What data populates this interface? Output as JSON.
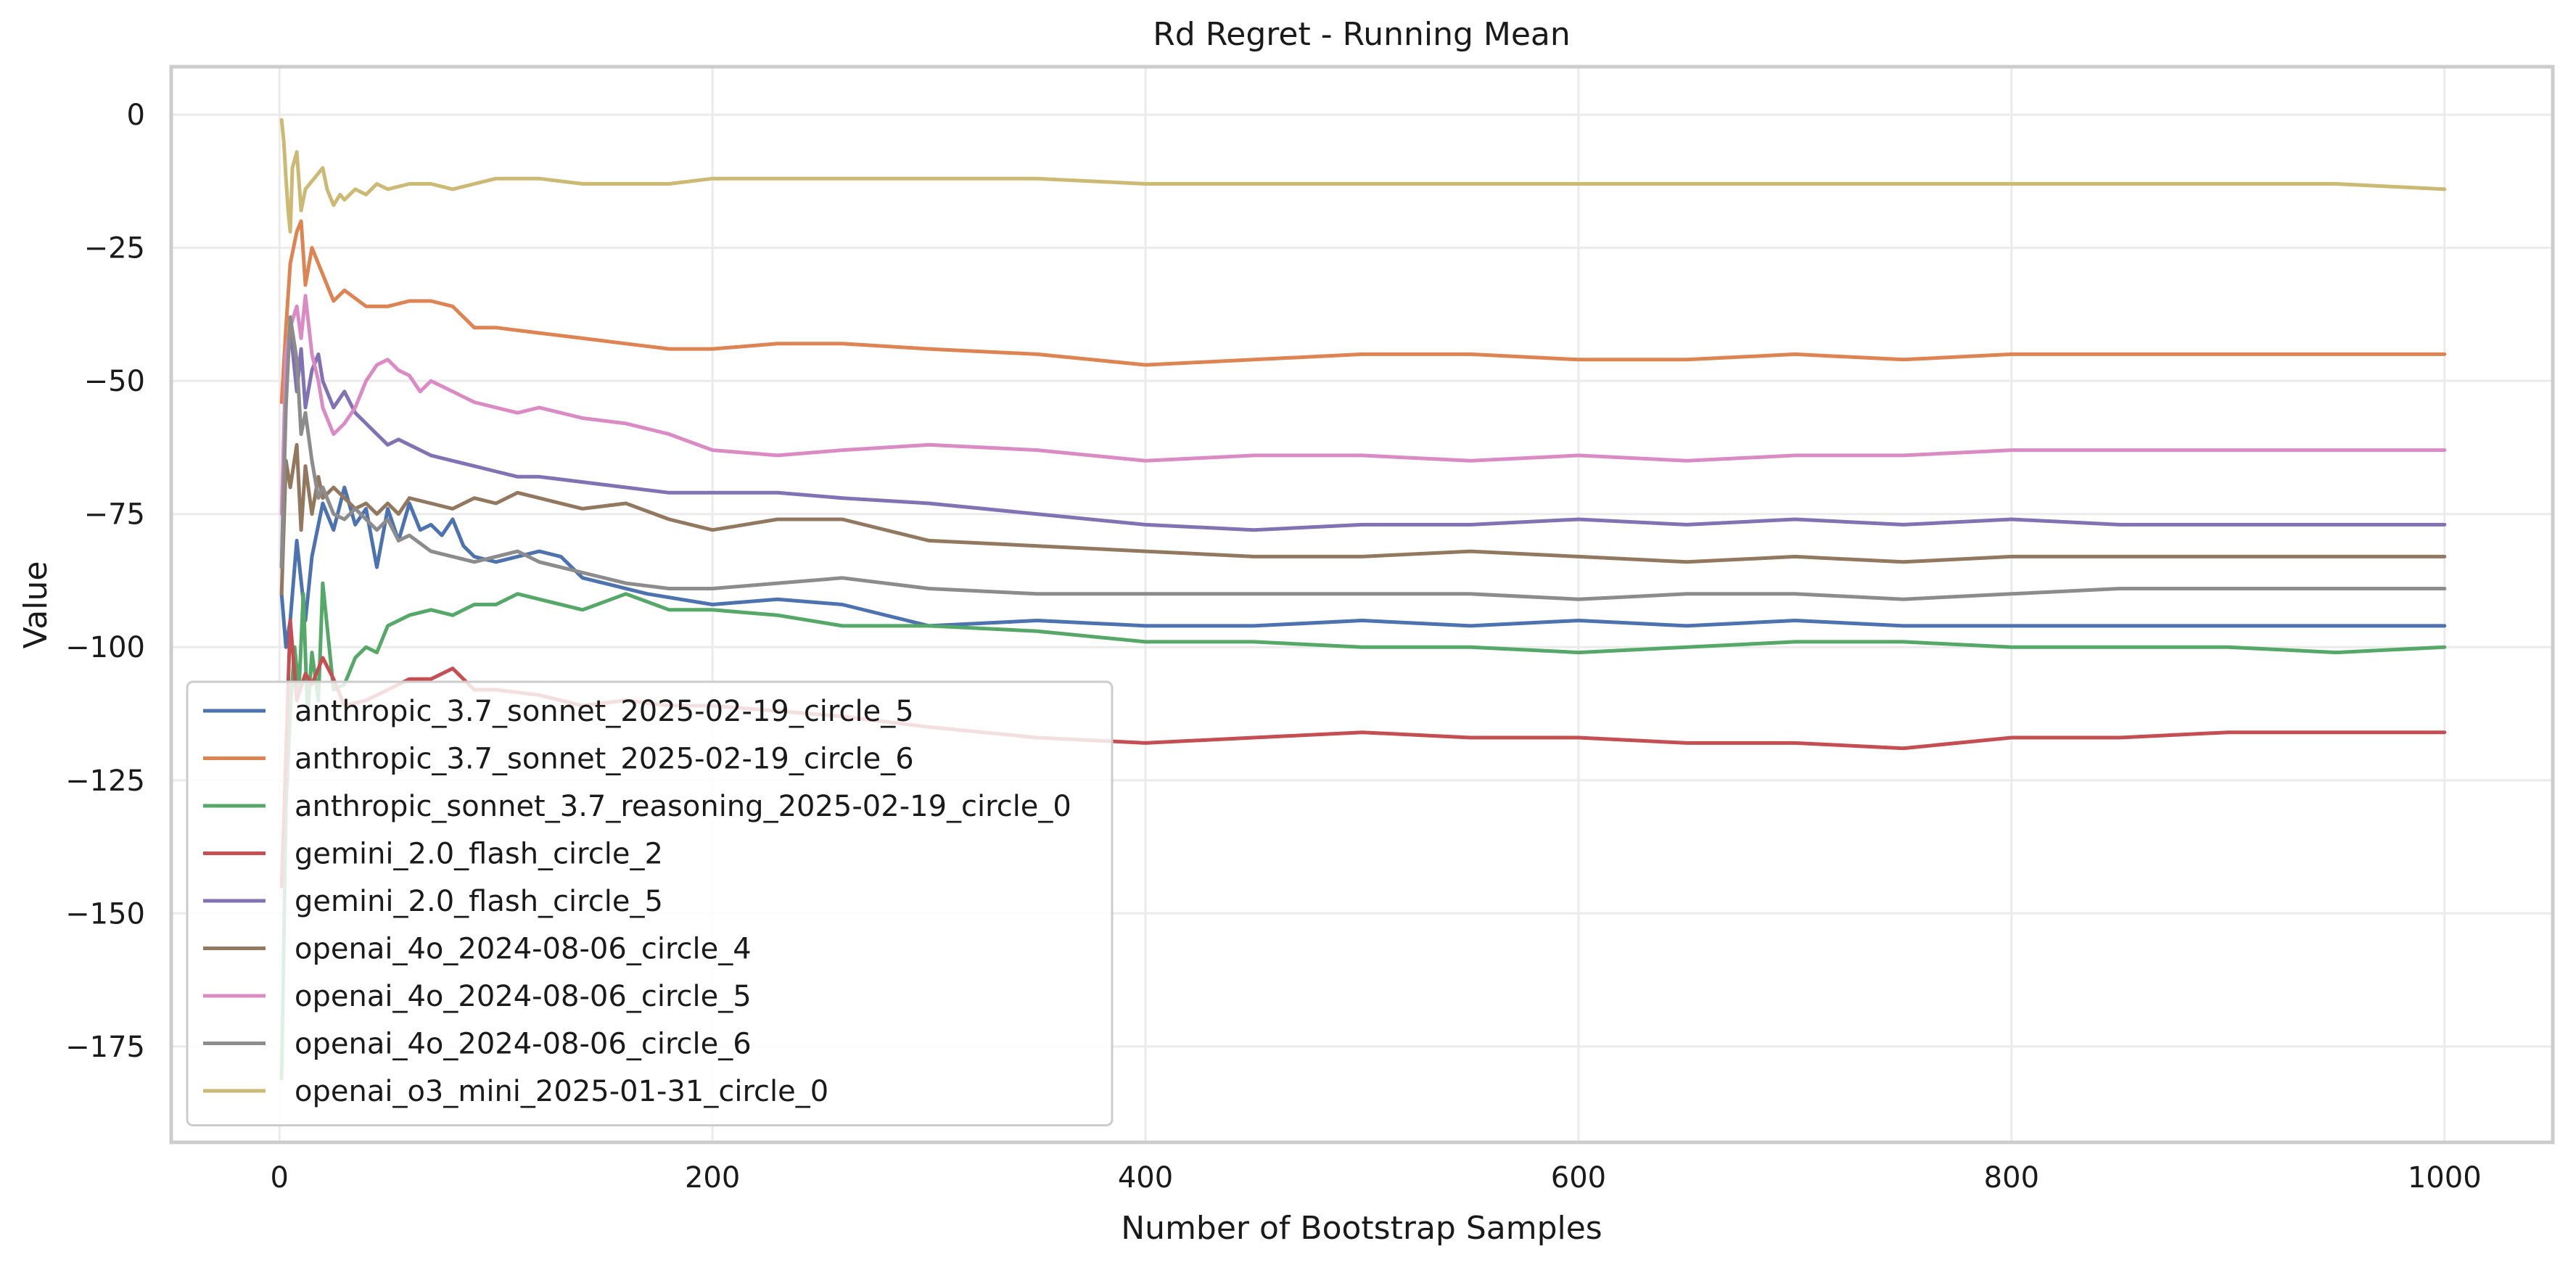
{
  "chart_data": {
    "type": "line",
    "title": "Rd Regret - Running Mean",
    "xlabel": "Number of Bootstrap Samples",
    "ylabel": "Value",
    "xlim": [
      -50,
      1050
    ],
    "ylim": [
      -193,
      9
    ],
    "xticks": [
      0,
      200,
      400,
      600,
      800,
      1000
    ],
    "xtick_labels": [
      "0",
      "200",
      "400",
      "600",
      "800",
      "1000"
    ],
    "yticks": [
      0,
      -25,
      -50,
      -75,
      -100,
      -125,
      -150,
      -175
    ],
    "ytick_labels": [
      "0",
      "−25",
      "−50",
      "−75",
      "−100",
      "−125",
      "−150",
      "−175"
    ],
    "grid": true,
    "legend_position": "lower-left",
    "series": [
      {
        "name": "anthropic_3.7_sonnet_2025-02-19_circle_5",
        "color": "#4c72b0",
        "x": [
          1,
          3,
          5,
          8,
          12,
          15,
          20,
          25,
          30,
          35,
          40,
          45,
          50,
          55,
          60,
          65,
          70,
          75,
          80,
          85,
          90,
          100,
          110,
          120,
          130,
          140,
          150,
          170,
          200,
          230,
          260,
          300,
          350,
          400,
          450,
          500,
          550,
          600,
          650,
          700,
          750,
          800,
          850,
          900,
          950,
          1000
        ],
        "y": [
          -90,
          -100,
          -95,
          -80,
          -95,
          -83,
          -73,
          -78,
          -70,
          -77,
          -74,
          -85,
          -74,
          -80,
          -73,
          -78,
          -77,
          -79,
          -76,
          -81,
          -83,
          -84,
          -83,
          -82,
          -83,
          -87,
          -88,
          -90,
          -92,
          -91,
          -92,
          -96,
          -95,
          -96,
          -96,
          -95,
          -96,
          -95,
          -96,
          -95,
          -96,
          -96,
          -96,
          -96,
          -96,
          -96
        ]
      },
      {
        "name": "anthropic_3.7_sonnet_2025-02-19_circle_6",
        "color": "#dd8452",
        "x": [
          1,
          3,
          5,
          8,
          10,
          12,
          15,
          20,
          25,
          30,
          40,
          50,
          60,
          70,
          80,
          90,
          100,
          120,
          140,
          160,
          180,
          200,
          230,
          260,
          300,
          350,
          400,
          450,
          500,
          550,
          600,
          650,
          700,
          750,
          800,
          850,
          900,
          950,
          1000
        ],
        "y": [
          -54,
          -40,
          -28,
          -22,
          -20,
          -32,
          -25,
          -30,
          -35,
          -33,
          -36,
          -36,
          -35,
          -35,
          -36,
          -40,
          -40,
          -41,
          -42,
          -43,
          -44,
          -44,
          -43,
          -43,
          -44,
          -45,
          -47,
          -46,
          -45,
          -45,
          -46,
          -46,
          -45,
          -46,
          -45,
          -45,
          -45,
          -45,
          -45
        ]
      },
      {
        "name": "anthropic_sonnet_3.7_reasoning_2025-02-19_circle_0",
        "color": "#55a868",
        "x": [
          1,
          3,
          5,
          7,
          9,
          11,
          13,
          15,
          18,
          20,
          25,
          30,
          35,
          40,
          45,
          50,
          60,
          70,
          80,
          90,
          100,
          110,
          120,
          140,
          160,
          180,
          200,
          230,
          260,
          300,
          350,
          400,
          450,
          500,
          550,
          600,
          650,
          700,
          750,
          800,
          850,
          900,
          950,
          1000
        ],
        "y": [
          -181,
          -130,
          -112,
          -100,
          -108,
          -90,
          -113,
          -101,
          -110,
          -88,
          -108,
          -107,
          -102,
          -100,
          -101,
          -96,
          -94,
          -93,
          -94,
          -92,
          -92,
          -90,
          -91,
          -93,
          -90,
          -93,
          -93,
          -94,
          -96,
          -96,
          -97,
          -99,
          -99,
          -100,
          -100,
          -101,
          -100,
          -99,
          -99,
          -100,
          -100,
          -100,
          -101,
          -100
        ]
      },
      {
        "name": "gemini_2.0_flash_circle_2",
        "color": "#c44e52",
        "x": [
          1,
          3,
          5,
          8,
          12,
          15,
          20,
          25,
          30,
          40,
          50,
          60,
          70,
          80,
          90,
          100,
          120,
          140,
          160,
          180,
          200,
          230,
          260,
          300,
          350,
          400,
          450,
          500,
          550,
          600,
          650,
          700,
          750,
          800,
          850,
          900,
          950,
          1000
        ],
        "y": [
          -145,
          -120,
          -95,
          -110,
          -105,
          -107,
          -102,
          -106,
          -111,
          -110,
          -108,
          -106,
          -106,
          -104,
          -108,
          -108,
          -109,
          -111,
          -110,
          -111,
          -111,
          -112,
          -113,
          -115,
          -117,
          -118,
          -117,
          -116,
          -117,
          -117,
          -118,
          -118,
          -119,
          -117,
          -117,
          -116,
          -116,
          -116
        ]
      },
      {
        "name": "gemini_2.0_flash_circle_5",
        "color": "#8172b3",
        "x": [
          1,
          3,
          5,
          8,
          10,
          12,
          15,
          18,
          20,
          25,
          30,
          35,
          40,
          45,
          50,
          55,
          60,
          70,
          80,
          90,
          100,
          110,
          120,
          140,
          160,
          180,
          200,
          230,
          260,
          300,
          350,
          400,
          450,
          500,
          550,
          600,
          650,
          700,
          750,
          800,
          850,
          900,
          950,
          1000
        ],
        "y": [
          -85,
          -50,
          -40,
          -52,
          -44,
          -55,
          -48,
          -45,
          -50,
          -55,
          -52,
          -56,
          -58,
          -60,
          -62,
          -61,
          -62,
          -64,
          -65,
          -66,
          -67,
          -68,
          -68,
          -69,
          -70,
          -71,
          -71,
          -71,
          -72,
          -73,
          -75,
          -77,
          -78,
          -77,
          -77,
          -76,
          -77,
          -76,
          -77,
          -76,
          -77,
          -77,
          -77,
          -77
        ]
      },
      {
        "name": "openai_4o_2024-08-06_circle_4",
        "color": "#937860",
        "x": [
          1,
          3,
          5,
          8,
          10,
          12,
          15,
          18,
          20,
          25,
          30,
          35,
          40,
          45,
          50,
          55,
          60,
          70,
          80,
          90,
          100,
          110,
          120,
          140,
          160,
          180,
          200,
          230,
          260,
          300,
          350,
          400,
          450,
          500,
          550,
          600,
          650,
          700,
          750,
          800,
          850,
          900,
          950,
          1000
        ],
        "y": [
          -90,
          -65,
          -70,
          -62,
          -78,
          -66,
          -75,
          -68,
          -72,
          -70,
          -72,
          -74,
          -73,
          -75,
          -73,
          -75,
          -72,
          -73,
          -74,
          -72,
          -73,
          -71,
          -72,
          -74,
          -73,
          -76,
          -78,
          -76,
          -76,
          -80,
          -81,
          -82,
          -83,
          -83,
          -82,
          -83,
          -84,
          -83,
          -84,
          -83,
          -83,
          -83,
          -83,
          -83
        ]
      },
      {
        "name": "openai_4o_2024-08-06_circle_5",
        "color": "#da8bc3",
        "x": [
          1,
          3,
          5,
          8,
          10,
          12,
          15,
          18,
          20,
          25,
          30,
          35,
          40,
          45,
          50,
          55,
          60,
          65,
          70,
          80,
          90,
          100,
          110,
          120,
          140,
          160,
          180,
          200,
          230,
          260,
          300,
          350,
          400,
          450,
          500,
          550,
          600,
          650,
          700,
          750,
          800,
          850,
          900,
          950,
          1000
        ],
        "y": [
          -75,
          -45,
          -40,
          -36,
          -42,
          -34,
          -45,
          -50,
          -55,
          -60,
          -58,
          -55,
          -50,
          -47,
          -46,
          -48,
          -49,
          -52,
          -50,
          -52,
          -54,
          -55,
          -56,
          -55,
          -57,
          -58,
          -60,
          -63,
          -64,
          -63,
          -62,
          -63,
          -65,
          -64,
          -64,
          -65,
          -64,
          -65,
          -64,
          -64,
          -63,
          -63,
          -63,
          -63,
          -63
        ]
      },
      {
        "name": "openai_4o_2024-08-06_circle_6",
        "color": "#8c8c8c",
        "x": [
          1,
          3,
          5,
          8,
          10,
          12,
          15,
          18,
          20,
          25,
          30,
          35,
          40,
          45,
          50,
          55,
          60,
          70,
          80,
          90,
          100,
          110,
          120,
          140,
          160,
          180,
          200,
          230,
          260,
          300,
          350,
          400,
          450,
          500,
          550,
          600,
          650,
          700,
          750,
          800,
          850,
          900,
          950,
          1000
        ],
        "y": [
          -85,
          -55,
          -38,
          -46,
          -60,
          -56,
          -65,
          -72,
          -70,
          -75,
          -76,
          -74,
          -76,
          -78,
          -76,
          -80,
          -79,
          -82,
          -83,
          -84,
          -83,
          -82,
          -84,
          -86,
          -88,
          -89,
          -89,
          -88,
          -87,
          -89,
          -90,
          -90,
          -90,
          -90,
          -90,
          -91,
          -90,
          -90,
          -91,
          -90,
          -89,
          -89,
          -89,
          -89
        ]
      },
      {
        "name": "openai_o3_mini_2025-01-31_circle_0",
        "color": "#ccb974",
        "x": [
          1,
          2,
          3,
          4,
          5,
          6,
          8,
          10,
          12,
          14,
          16,
          18,
          20,
          22,
          25,
          28,
          30,
          35,
          40,
          45,
          50,
          60,
          70,
          80,
          90,
          100,
          110,
          120,
          140,
          160,
          180,
          200,
          230,
          260,
          300,
          350,
          400,
          450,
          500,
          550,
          600,
          650,
          700,
          750,
          800,
          850,
          900,
          950,
          1000
        ],
        "y": [
          -1,
          -5,
          -12,
          -18,
          -22,
          -10,
          -7,
          -18,
          -14,
          -13,
          -12,
          -11,
          -10,
          -14,
          -17,
          -15,
          -16,
          -14,
          -15,
          -13,
          -14,
          -13,
          -13,
          -14,
          -13,
          -12,
          -12,
          -12,
          -13,
          -13,
          -13,
          -12,
          -12,
          -12,
          -12,
          -12,
          -13,
          -13,
          -13,
          -13,
          -13,
          -13,
          -13,
          -13,
          -13,
          -13,
          -13,
          -13,
          -14
        ]
      }
    ]
  }
}
